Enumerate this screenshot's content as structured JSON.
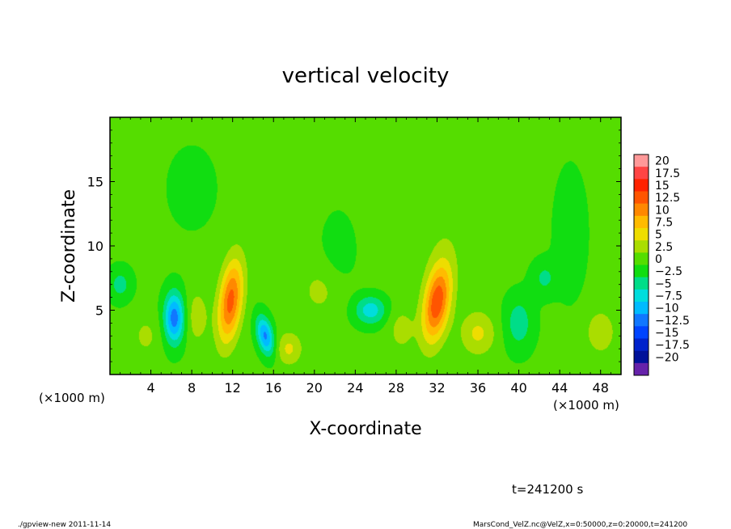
{
  "footer": {
    "left": "./gpview-new  2011-11-14",
    "right": "MarsCond_VelZ.nc@VelZ,x=0:50000,z=0:20000,t=241200"
  },
  "chart_data": {
    "type": "heatmap",
    "title": "vertical velocity",
    "xlabel": "X-coordinate",
    "ylabel": "Z-coordinate",
    "x_unit_left": "(×1000 m)",
    "x_unit_right": "(×1000 m)",
    "time_label": "t=241200 s",
    "xlim": [
      0,
      50
    ],
    "ylim": [
      0,
      20
    ],
    "x_ticks": [
      4,
      8,
      12,
      16,
      20,
      24,
      28,
      32,
      36,
      40,
      44,
      48
    ],
    "y_ticks": [
      5,
      10,
      15
    ],
    "background_value": 0.5,
    "colorbar": {
      "labels": [
        "20",
        "17.5",
        "15",
        "12.5",
        "10",
        "7.5",
        "5",
        "2.5",
        "0",
        "−2.5",
        "−5",
        "−7.5",
        "−10",
        "−12.5",
        "−15",
        "−17.5",
        "−20"
      ],
      "levels": [
        20,
        17.5,
        15,
        12.5,
        10,
        7.5,
        5,
        2.5,
        0,
        -2.5,
        -5,
        -7.5,
        -10,
        -12.5,
        -15,
        -17.5,
        -20
      ],
      "colors": [
        "#ff9999",
        "#ff4444",
        "#ff2200",
        "#ff5500",
        "#ff8800",
        "#ffbb00",
        "#eedd00",
        "#aadd00",
        "#55dd00",
        "#11dd11",
        "#00dd88",
        "#00dddd",
        "#00bbff",
        "#1177ff",
        "#0044ff",
        "#0022cc",
        "#001199",
        "#6622aa"
      ]
    },
    "features": [
      {
        "x": 6.3,
        "z": 4.4,
        "sx": 0.7,
        "sz": 1.4,
        "value": -12,
        "angle": 0
      },
      {
        "x": 11.8,
        "z": 5.7,
        "sx": 0.8,
        "sz": 2.3,
        "value": 13,
        "angle": 0.15
      },
      {
        "x": 15.2,
        "z": 3.0,
        "sx": 0.55,
        "sz": 1.1,
        "value": -11,
        "angle": -0.3
      },
      {
        "x": 25.5,
        "z": 5.0,
        "sx": 1.1,
        "sz": 0.8,
        "value": -7,
        "angle": 0
      },
      {
        "x": 32.0,
        "z": 5.6,
        "sx": 0.9,
        "sz": 2.2,
        "value": 14,
        "angle": 0.2
      },
      {
        "x": 17.5,
        "z": 2.0,
        "sx": 0.9,
        "sz": 0.9,
        "value": 5,
        "angle": 0
      },
      {
        "x": 36.0,
        "z": 3.2,
        "sx": 1.2,
        "sz": 1.2,
        "value": 5,
        "angle": 0
      },
      {
        "x": 48.0,
        "z": 3.3,
        "sx": 1.0,
        "sz": 1.2,
        "value": 4,
        "angle": 0
      },
      {
        "x": 8.5,
        "z": 4.5,
        "sx": 0.8,
        "sz": 1.5,
        "value": 3.5,
        "angle": 0
      },
      {
        "x": 20.5,
        "z": 6.5,
        "sx": 1.5,
        "sz": 1.5,
        "value": 2.5,
        "angle": 0
      },
      {
        "x": 28.5,
        "z": 3.5,
        "sx": 0.9,
        "sz": 1.2,
        "value": 3,
        "angle": 0
      },
      {
        "x": 1.0,
        "z": 7.0,
        "sx": 0.8,
        "sz": 0.9,
        "value": -4,
        "angle": 0
      },
      {
        "x": 40.0,
        "z": 4.0,
        "sx": 1.0,
        "sz": 1.5,
        "value": -4.5,
        "angle": 0
      },
      {
        "x": 42.5,
        "z": 7.5,
        "sx": 0.9,
        "sz": 1.0,
        "value": -3.5,
        "angle": 0
      },
      {
        "x": 45.0,
        "z": 11.0,
        "sx": 1.0,
        "sz": 3.0,
        "value": -3,
        "angle": 0
      },
      {
        "x": 22.5,
        "z": 10.0,
        "sx": 1.2,
        "sz": 2.0,
        "value": -2,
        "angle": 0
      },
      {
        "x": 8.0,
        "z": 14.5,
        "sx": 1.5,
        "sz": 2.0,
        "value": -2,
        "angle": 0
      },
      {
        "x": 31.5,
        "z": 14.0,
        "sx": 5.0,
        "sz": 4.0,
        "value": 1.5,
        "angle": 0
      },
      {
        "x": 3.5,
        "z": 3.0,
        "sx": 1.0,
        "sz": 1.2,
        "value": 2.5,
        "angle": 0
      }
    ]
  }
}
